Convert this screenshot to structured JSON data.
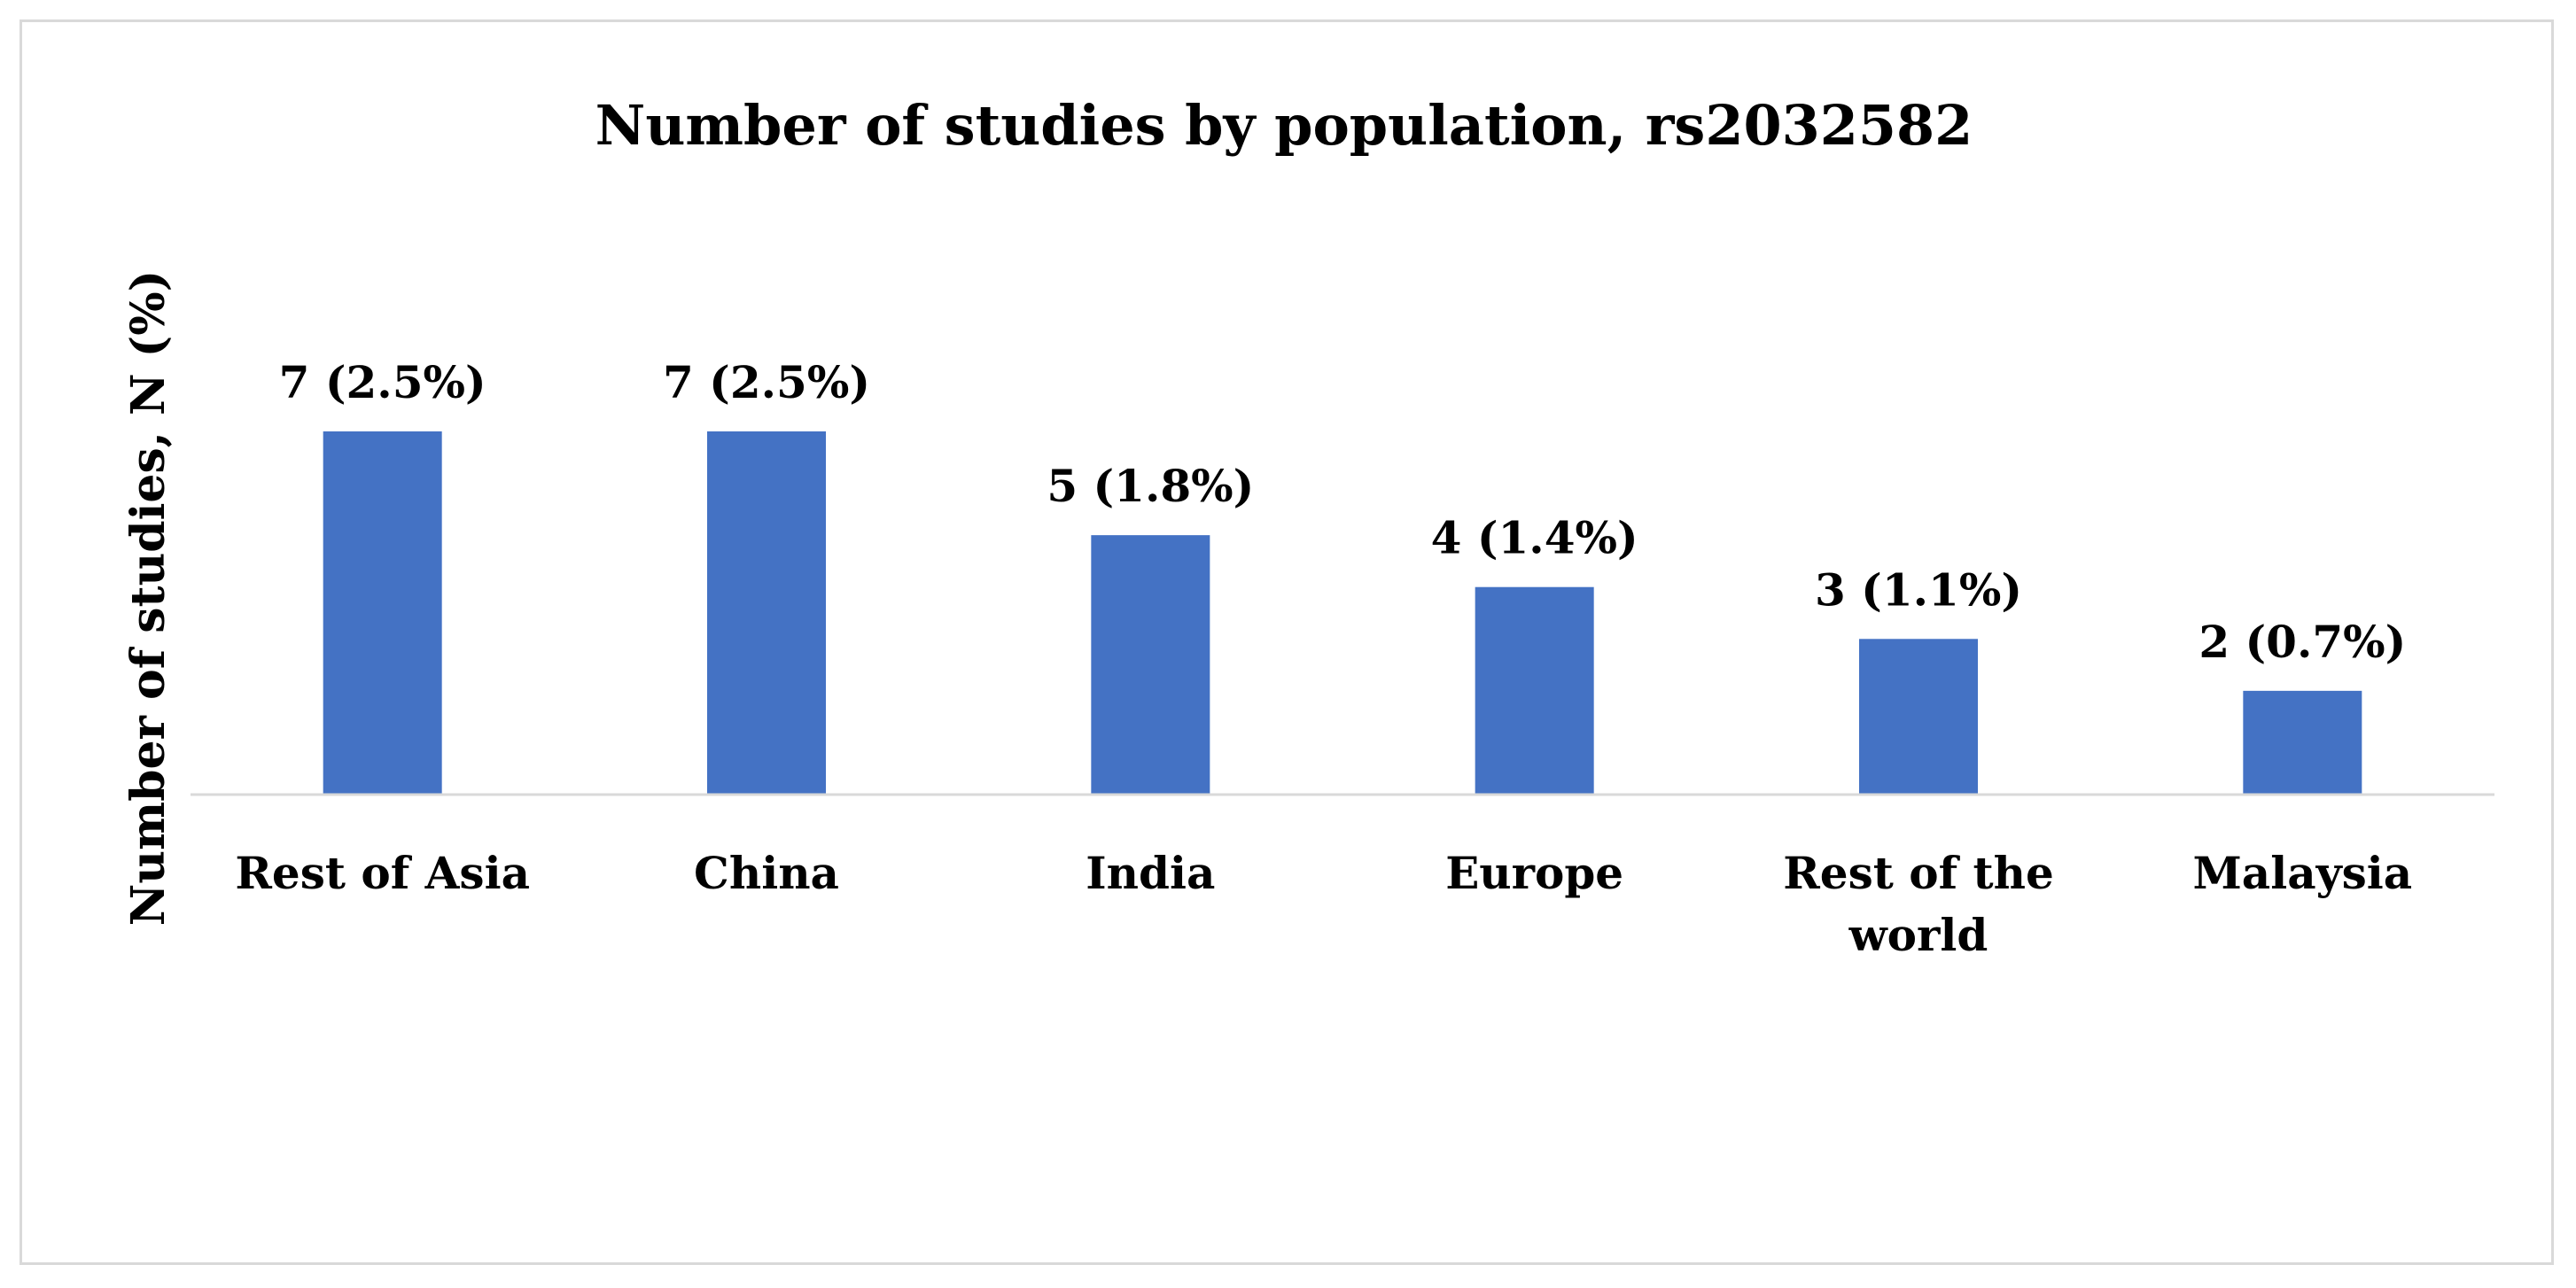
{
  "chart_data": {
    "type": "bar",
    "title": "Number of studies by population, rs2032582",
    "xlabel": "",
    "ylabel": "Number of studies, N (%)",
    "categories": [
      "Rest of Asia",
      "China",
      "India",
      "Europe",
      "Rest of the world",
      "Malaysia"
    ],
    "category_lines": [
      [
        "Rest of Asia"
      ],
      [
        "China"
      ],
      [
        "India"
      ],
      [
        "Europe"
      ],
      [
        "Rest of the",
        "world"
      ],
      [
        "Malaysia"
      ]
    ],
    "values": [
      7,
      7,
      5,
      4,
      3,
      2
    ],
    "data_labels": [
      "7 (2.5%)",
      "7 (2.5%)",
      "5 (1.8%)",
      "4 (1.4%)",
      "3 (1.1%)",
      "2 (0.7%)"
    ],
    "ylim": [
      0,
      7
    ],
    "grid": false,
    "legend": "none",
    "colors": {
      "bar": "#4472c4",
      "axis": "#d9d9d9",
      "border": "#d9d9d9"
    }
  }
}
